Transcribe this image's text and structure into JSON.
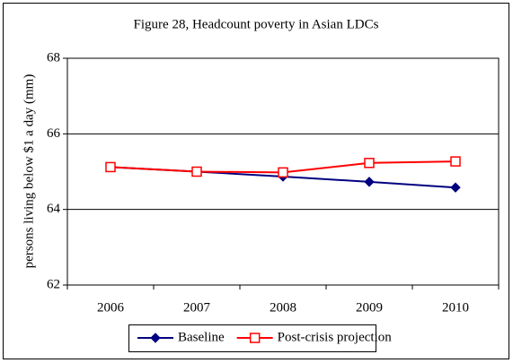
{
  "chart_data": {
    "type": "line",
    "title": "Figure 28, Headcount poverty in Asian LDCs",
    "y_label": "persons living below $1 a day (mm)",
    "categories": [
      "2006",
      "2007",
      "2008",
      "2009",
      "2010"
    ],
    "series": [
      {
        "name": "Baseline",
        "color": "#000080",
        "marker": "diamond",
        "values": [
          65.12,
          65.0,
          64.87,
          64.73,
          64.58
        ]
      },
      {
        "name": "Post-crisis projection",
        "color": "#ff0000",
        "marker": "square",
        "values": [
          65.12,
          65.0,
          64.98,
          65.23,
          65.27
        ]
      }
    ],
    "ylim": [
      62,
      68
    ],
    "yticks": [
      62,
      64,
      66,
      68
    ],
    "grid": true,
    "legend": "bottom"
  }
}
